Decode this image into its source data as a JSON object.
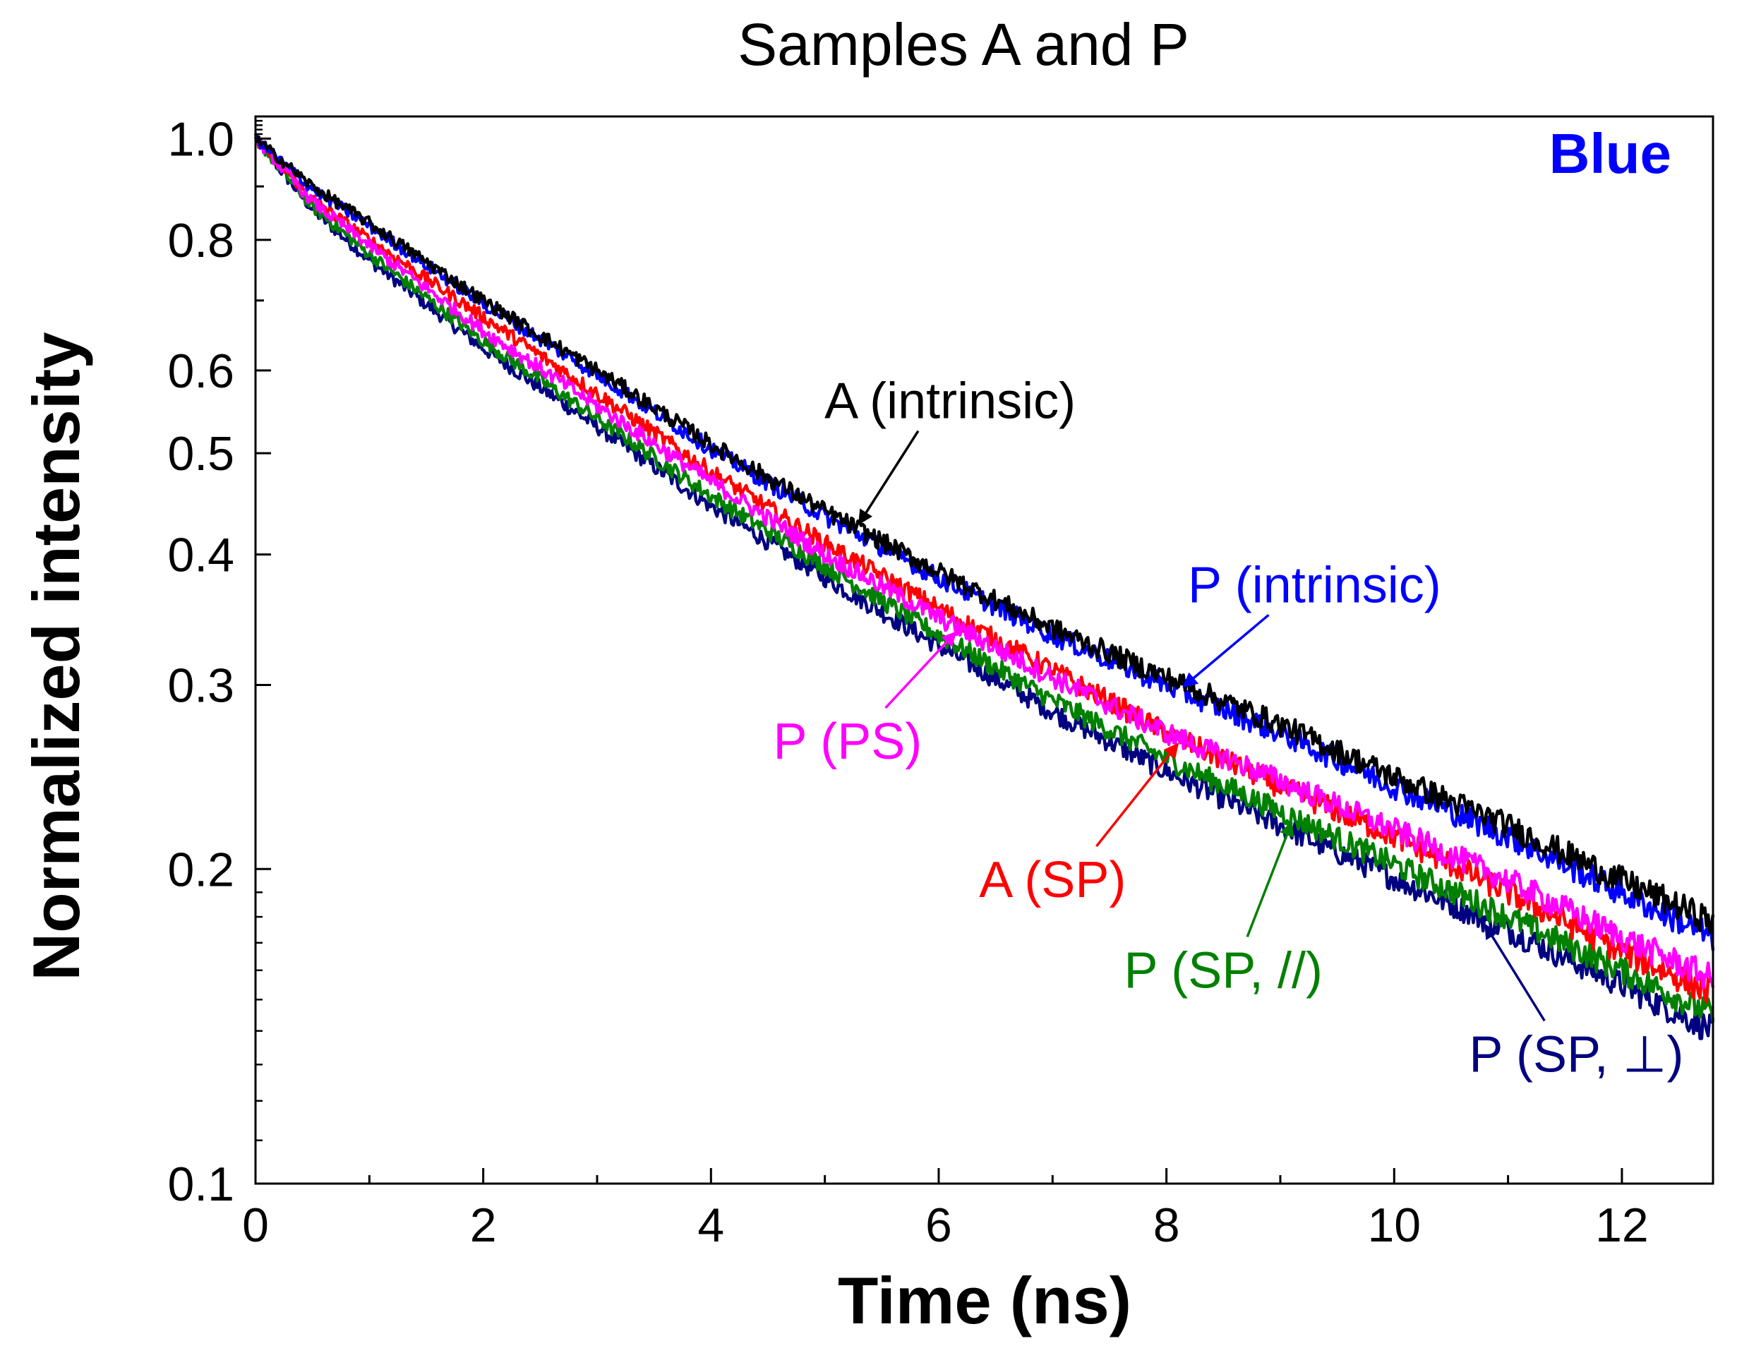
{
  "chart_data": {
    "type": "line",
    "title": "Samples A and P",
    "xlabel": "Time (ns)",
    "ylabel": "Normalized intensity",
    "xlim": [
      0,
      12.8
    ],
    "ylim": [
      0.1,
      1.05
    ],
    "yscale": "log",
    "corner_label": {
      "text": "Blue",
      "color": "#0000ff"
    },
    "x_ticks": [
      0,
      2,
      4,
      6,
      8,
      10,
      12
    ],
    "x_tick_labels": [
      "0",
      "2",
      "4",
      "6",
      "8",
      "10",
      "12"
    ],
    "y_ticks": [
      1.0,
      0.8,
      0.6,
      0.5,
      0.4,
      0.3,
      0.2,
      0.1
    ],
    "y_tick_labels": [
      "1.0",
      "0.8",
      "0.6",
      "0.5",
      "0.4",
      "0.3",
      "0.2",
      "0.1"
    ],
    "x": [
      0,
      0.5,
      1,
      2,
      3,
      4,
      5,
      6,
      7,
      8,
      9,
      10,
      11,
      12,
      12.8
    ],
    "series": [
      {
        "name": "A (intrinsic)",
        "color": "#000000",
        "label": "A (intrinsic)",
        "values": [
          1.0,
          0.9,
          0.83,
          0.7,
          0.6,
          0.51,
          0.44,
          0.385,
          0.34,
          0.305,
          0.275,
          0.245,
          0.22,
          0.195,
          0.178
        ],
        "arrow_x": 5.3,
        "label_x": 6.1,
        "label_y": 0.54
      },
      {
        "name": "P (intrinsic)",
        "color": "#0000ff",
        "label": "P (intrinsic)",
        "values": [
          1.0,
          0.895,
          0.825,
          0.695,
          0.595,
          0.505,
          0.435,
          0.38,
          0.335,
          0.3,
          0.27,
          0.24,
          0.215,
          0.19,
          0.172
        ],
        "arrow_x": 8.15,
        "label_x": 9.3,
        "label_y": 0.36
      },
      {
        "name": "P (PS)",
        "color": "#ff00ff",
        "label": "P (PS)",
        "values": [
          1.0,
          0.87,
          0.79,
          0.655,
          0.555,
          0.47,
          0.4,
          0.348,
          0.305,
          0.27,
          0.243,
          0.218,
          0.195,
          0.172,
          0.157
        ],
        "arrow_x": 6.15,
        "label_x": 5.2,
        "label_y": 0.255
      },
      {
        "name": "A (SP)",
        "color": "#ff0000",
        "label": "A (SP)",
        "values": [
          1.0,
          0.875,
          0.8,
          0.675,
          0.57,
          0.48,
          0.41,
          0.355,
          0.31,
          0.27,
          0.24,
          0.215,
          0.19,
          0.167,
          0.152
        ],
        "arrow_x": 8.1,
        "label_x": 7.0,
        "label_y": 0.188
      },
      {
        "name": "P (SP, //)",
        "color": "#008000",
        "label": "P (SP, //)",
        "values": [
          1.0,
          0.86,
          0.775,
          0.64,
          0.54,
          0.455,
          0.39,
          0.335,
          0.29,
          0.255,
          0.227,
          0.202,
          0.18,
          0.16,
          0.145
        ],
        "arrow_x": 9.1,
        "label_x": 8.5,
        "label_y": 0.154
      },
      {
        "name": "P (SP, ⊥)",
        "color": "#000080",
        "label": "P (SP, ⊥)",
        "values": [
          1.0,
          0.855,
          0.765,
          0.63,
          0.53,
          0.445,
          0.38,
          0.327,
          0.283,
          0.248,
          0.22,
          0.196,
          0.175,
          0.155,
          0.14
        ],
        "arrow_x": 10.8,
        "label_x": 11.6,
        "label_y": 0.128
      }
    ]
  }
}
